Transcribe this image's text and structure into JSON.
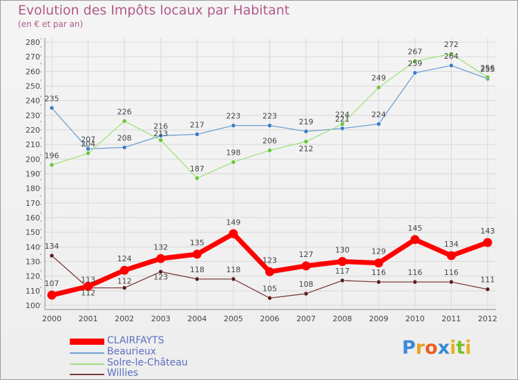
{
  "title": "Evolution des Impôts locaux par Habitant",
  "subtitle": "(en € et par an)",
  "chart_data": {
    "type": "line",
    "title": "Evolution des Impôts locaux par Habitant",
    "ylabel": "(en € et par an)",
    "xlabel": "",
    "ylim": [
      100,
      280
    ],
    "ytick_step": 10,
    "grid": true,
    "categories": [
      "2000",
      "2001",
      "2002",
      "2003",
      "2004",
      "2005",
      "2006",
      "2007",
      "2008",
      "2009",
      "2010",
      "2011",
      "2012"
    ],
    "series": [
      {
        "name": "Beaurieux",
        "color": "#6a9ed4",
        "marker": "#3a7ec4",
        "values": [
          235,
          207,
          208,
          216,
          217,
          223,
          223,
          219,
          221,
          224,
          259,
          264,
          255
        ]
      },
      {
        "name": "Solre-le-Château",
        "color": "#9fe07a",
        "marker": "#6cc43c",
        "values": [
          196,
          204,
          226,
          213,
          187,
          198,
          206,
          212,
          224,
          249,
          267,
          272,
          256
        ]
      },
      {
        "name": "Willies",
        "color": "#7a3a3a",
        "marker": "#5a1e1e",
        "values": [
          134,
          112,
          112,
          123,
          118,
          118,
          105,
          108,
          117,
          116,
          116,
          116,
          111
        ]
      },
      {
        "name": "CLAIRFAYTS",
        "color": "#ff0000",
        "marker": "#ff0000",
        "values": [
          107,
          113,
          124,
          132,
          135,
          149,
          123,
          127,
          130,
          129,
          145,
          134,
          143
        ]
      }
    ]
  },
  "legend": [
    {
      "label": "CLAIRFAYTS",
      "color": "#ff0000"
    },
    {
      "label": "Beaurieux",
      "color": "#6a9ed4"
    },
    {
      "label": "Solre-le-Château",
      "color": "#9fe07a"
    },
    {
      "label": "Willies",
      "color": "#7a3a3a"
    }
  ],
  "logo": {
    "text": "Proxiti",
    "letters": [
      "P",
      "r",
      "o",
      "x",
      "i",
      "t",
      "i"
    ]
  }
}
